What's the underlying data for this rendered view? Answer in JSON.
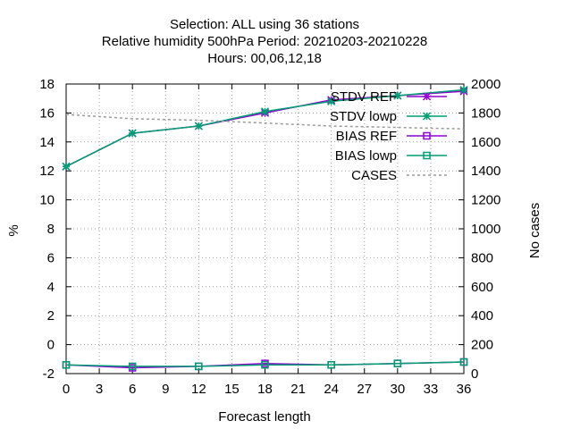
{
  "chart_data": {
    "type": "line",
    "title_lines": [
      "Selection: ALL using    36 stations",
      "Relative humidity 500hPa   Period: 20210203-20210228",
      "Hours:  00,06,12,18"
    ],
    "xlabel": "Forecast length",
    "ylabel": "%",
    "y2label": "No cases",
    "xlim": [
      0,
      36
    ],
    "ylim": [
      -2,
      18
    ],
    "y2lim": [
      0,
      2000
    ],
    "xticks": [
      0,
      3,
      6,
      9,
      12,
      15,
      18,
      21,
      24,
      27,
      30,
      33,
      36
    ],
    "yticks": [
      -2,
      0,
      2,
      4,
      6,
      8,
      10,
      12,
      14,
      16,
      18
    ],
    "y2ticks": [
      0,
      200,
      400,
      600,
      800,
      1000,
      1200,
      1400,
      1600,
      1800,
      2000
    ],
    "grid": true,
    "legend_position": "top-right",
    "x": [
      0,
      6,
      12,
      18,
      24,
      30,
      36
    ],
    "series": [
      {
        "name": "STDV REF",
        "axis": "y",
        "color": "#9400d3",
        "marker": "star",
        "dash": false,
        "values": [
          12.3,
          14.6,
          15.1,
          16.0,
          16.9,
          17.2,
          17.5
        ]
      },
      {
        "name": "STDV lowp",
        "axis": "y",
        "color": "#009e73",
        "marker": "star",
        "dash": false,
        "values": [
          12.3,
          14.6,
          15.1,
          16.1,
          16.8,
          17.2,
          17.6
        ]
      },
      {
        "name": "BIAS REF",
        "axis": "y",
        "color": "#9400d3",
        "marker": "square",
        "dash": false,
        "values": [
          -1.4,
          -1.6,
          -1.5,
          -1.3,
          -1.4,
          -1.3,
          -1.2
        ]
      },
      {
        "name": "BIAS lowp",
        "axis": "y",
        "color": "#009e73",
        "marker": "square",
        "dash": false,
        "values": [
          -1.4,
          -1.5,
          -1.5,
          -1.4,
          -1.4,
          -1.3,
          -1.2
        ]
      },
      {
        "name": "CASES",
        "axis": "y2",
        "color": "#999999",
        "marker": "none",
        "dash": true,
        "values": [
          1790,
          1760,
          1750,
          1730,
          1710,
          1700,
          1690
        ]
      }
    ]
  }
}
